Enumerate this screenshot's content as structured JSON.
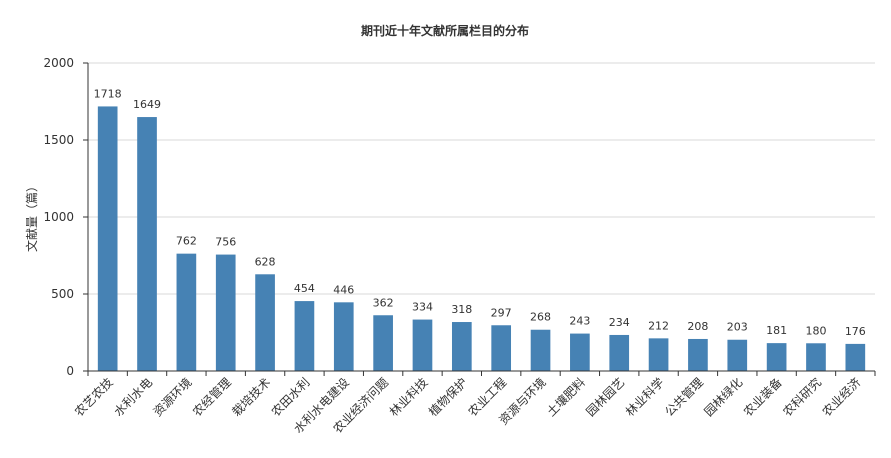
{
  "chart_data": {
    "type": "bar",
    "title": "期刊近十年文献所属栏目的分布",
    "ylabel": "文献量（篇）",
    "xlabel": "",
    "ylim": [
      0,
      2000
    ],
    "yticks": [
      "0",
      "500",
      "1000",
      "1500",
      "2000"
    ],
    "grid": true,
    "categories": [
      "农艺农技",
      "水利水电",
      "资源环境",
      "农经管理",
      "栽培技术",
      "农田水利",
      "水利水电建设",
      "农业经济问题",
      "林业科技",
      "植物保护",
      "农业工程",
      "资源与环境",
      "土壤肥料",
      "园林园艺",
      "林业科学",
      "公共管理",
      "园林绿化",
      "农业装备",
      "农科研究",
      "农业经济"
    ],
    "values": [
      1718,
      1649,
      762,
      756,
      628,
      454,
      446,
      362,
      334,
      318,
      297,
      268,
      243,
      234,
      212,
      208,
      203,
      181,
      180,
      176
    ],
    "bar_color": "#4682b4"
  }
}
